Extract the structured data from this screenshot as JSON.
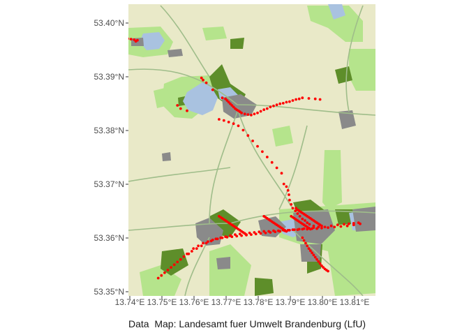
{
  "caption": "Data  Map: Landesamt fuer Umwelt Brandenburg (LfU)",
  "axes": {
    "x_ticks": [
      "13.74°E",
      "13.75°E",
      "13.76°E",
      "13.77°E",
      "13.78°E",
      "13.79°E",
      "13.80°E",
      "13.81°E"
    ],
    "y_ticks": [
      "53.40°N",
      "53.39°N",
      "53.38°N",
      "53.37°N",
      "53.36°N",
      "53.35°N"
    ],
    "x_range": [
      13.7397,
      13.8168
    ],
    "y_range": [
      53.3492,
      53.4034
    ]
  },
  "colors": {
    "base": "#e9e9c8",
    "water": "#a9c2e0",
    "forest": "#5e8e2a",
    "meadow": "#b5e48c",
    "settlement": "#8a8a8a",
    "roads": "#9fbd8a",
    "points": "#ff0000"
  },
  "chart_data": {
    "type": "scatter",
    "title": "",
    "xlabel": "",
    "ylabel": "",
    "ylim": [
      53.3492,
      53.4034
    ],
    "xlim": [
      13.7397,
      13.8168
    ],
    "x": [
      13.7395,
      13.7405,
      13.7415,
      13.7425,
      13.742,
      13.755,
      13.756,
      13.758,
      13.7625,
      13.763,
      13.764,
      13.766,
      13.769,
      13.77,
      13.7705,
      13.771,
      13.7715,
      13.772,
      13.7725,
      13.773,
      13.7735,
      13.774,
      13.7745,
      13.775,
      13.776,
      13.777,
      13.778,
      13.779,
      13.78,
      13.781,
      13.782,
      13.783,
      13.784,
      13.785,
      13.786,
      13.787,
      13.788,
      13.789,
      13.79,
      13.791,
      13.792,
      13.793,
      13.794,
      13.796,
      13.798,
      13.7995,
      13.768,
      13.7695,
      13.771,
      13.7725,
      13.774,
      13.7755,
      13.777,
      13.7785,
      13.78,
      13.7815,
      13.783,
      13.7845,
      13.786,
      13.7875,
      13.7882,
      13.789,
      13.7895,
      13.7898,
      13.79,
      13.7905,
      13.791,
      13.7918,
      13.7925,
      13.7932,
      13.794,
      13.7948,
      13.7955,
      13.7962,
      13.7975,
      13.799,
      13.801,
      13.803,
      13.805,
      13.807,
      13.8085,
      13.81,
      13.8115,
      13.758,
      13.7595,
      13.761,
      13.7625,
      13.764,
      13.7655,
      13.767,
      13.7685,
      13.77,
      13.7715,
      13.773,
      13.7745,
      13.776,
      13.7775,
      13.779,
      13.7805,
      13.782,
      13.7835,
      13.785,
      13.7865,
      13.788,
      13.7895,
      13.791,
      13.7925,
      13.794,
      13.7955,
      13.797,
      13.7985,
      13.8,
      13.802,
      13.804,
      13.806,
      13.808,
      13.81,
      13.812,
      13.749,
      13.75,
      13.751,
      13.752,
      13.753,
      13.754,
      13.755,
      13.756,
      13.757,
      13.7585,
      13.76,
      13.7615,
      13.763,
      13.7645,
      13.766,
      13.7675,
      13.769,
      13.7705,
      13.772,
      13.7735,
      13.775,
      13.7765,
      13.778,
      13.7795,
      13.781,
      13.7825,
      13.784,
      13.7855,
      13.787,
      13.7885,
      13.79,
      13.7915,
      13.793,
      13.7945,
      13.796,
      13.7975,
      13.799,
      13.768,
      13.7685,
      13.769,
      13.7695,
      13.77,
      13.7705,
      13.771,
      13.7715,
      13.772,
      13.7725,
      13.773,
      13.7735,
      13.774,
      13.7745,
      13.775,
      13.7755,
      13.776,
      13.7765,
      13.782,
      13.7825,
      13.783,
      13.7835,
      13.784,
      13.7845,
      13.785,
      13.7855,
      13.786,
      13.7865,
      13.787,
      13.7875,
      13.788,
      13.7885,
      13.789,
      13.7905,
      13.791,
      13.7915,
      13.792,
      13.7925,
      13.793,
      13.7935,
      13.794,
      13.7945,
      13.795,
      13.7955,
      13.796,
      13.7965,
      13.794,
      13.7945,
      13.795,
      13.7955,
      13.796,
      13.7965,
      13.797,
      13.7975,
      13.798,
      13.7985,
      13.799,
      13.7995,
      13.8,
      13.8005,
      13.801,
      13.8015,
      13.802,
      13.792,
      13.7925,
      13.793,
      13.7935,
      13.794,
      13.7945,
      13.795,
      13.7955,
      13.796,
      13.7965,
      13.797,
      13.7975,
      13.798,
      13.7985,
      13.799,
      13.7995,
      13.8
    ],
    "y": [
      53.397,
      53.3969,
      53.3968,
      53.3967,
      53.3965,
      53.3846,
      53.384,
      53.3836,
      53.3897,
      53.3893,
      53.3888,
      53.3875,
      53.386,
      53.3858,
      53.3855,
      53.3852,
      53.3849,
      53.3846,
      53.3843,
      53.384,
      53.3838,
      53.3836,
      53.3834,
      53.3832,
      53.383,
      53.3829,
      53.3828,
      53.383,
      53.3832,
      53.3835,
      53.3838,
      53.384,
      53.3843,
      53.3845,
      53.3847,
      53.3849,
      53.385,
      53.3852,
      53.3853,
      53.3855,
      53.3857,
      53.3858,
      53.386,
      53.3859,
      53.3858,
      53.3857,
      53.382,
      53.3818,
      53.3815,
      53.3812,
      53.3808,
      53.38,
      53.379,
      53.378,
      53.377,
      53.376,
      53.375,
      53.374,
      53.373,
      53.372,
      53.37,
      53.3695,
      53.3688,
      53.368,
      53.367,
      53.3662,
      53.3655,
      53.365,
      53.3645,
      53.364,
      53.3635,
      53.3632,
      53.3628,
      53.3625,
      53.3622,
      53.362,
      53.362,
      53.3622,
      53.3624,
      53.3625,
      53.3626,
      53.3627,
      53.3628,
      53.357,
      53.3575,
      53.358,
      53.3585,
      53.359,
      53.3594,
      53.3598,
      53.36,
      53.3602,
      53.3604,
      53.3606,
      53.3607,
      53.3608,
      53.3609,
      53.361,
      53.3611,
      53.3612,
      53.3612,
      53.3613,
      53.3613,
      53.3614,
      53.3614,
      53.3615,
      53.3615,
      53.3616,
      53.3616,
      53.3617,
      53.3617,
      53.3618,
      53.3619,
      53.362,
      53.3621,
      53.3622,
      53.3624,
      53.3626,
      53.3525,
      53.353,
      53.3535,
      53.354,
      53.3545,
      53.355,
      53.3555,
      53.356,
      53.3565,
      53.357,
      53.358,
      53.3585,
      53.359,
      53.3593,
      53.3596,
      53.3598,
      53.36,
      53.3601,
      53.3602,
      53.3603,
      53.3604,
      53.3605,
      53.3606,
      53.3607,
      53.3608,
      53.3609,
      53.361,
      53.3611,
      53.3612,
      53.3613,
      53.3614,
      53.3615,
      53.3616,
      53.3617,
      53.3618,
      53.3619,
      53.362,
      53.364,
      53.3638,
      53.3636,
      53.3634,
      53.3632,
      53.363,
      53.3628,
      53.3626,
      53.3624,
      53.3622,
      53.362,
      53.3618,
      53.3616,
      53.3614,
      53.3612,
      53.361,
      53.3608,
      53.3606,
      53.364,
      53.3638,
      53.3636,
      53.3634,
      53.3632,
      53.363,
      53.3628,
      53.3626,
      53.3624,
      53.3622,
      53.362,
      53.3618,
      53.3616,
      53.3614,
      53.3612,
      53.364,
      53.3638,
      53.3636,
      53.3634,
      53.3632,
      53.363,
      53.3628,
      53.3626,
      53.3624,
      53.3622,
      53.362,
      53.3618,
      53.3616,
      53.36,
      53.3595,
      53.359,
      53.3585,
      53.358,
      53.3576,
      53.3572,
      53.3568,
      53.3564,
      53.356,
      53.3556,
      53.3552,
      53.3548,
      53.3545,
      53.3542,
      53.354,
      53.3538,
      53.3655,
      53.3652,
      53.365,
      53.3648,
      53.3646,
      53.3644,
      53.3642,
      53.364,
      53.3638,
      53.3636,
      53.3634,
      53.3632,
      53.363,
      53.3628,
      53.3626,
      53.3624,
      53.3622
    ]
  }
}
